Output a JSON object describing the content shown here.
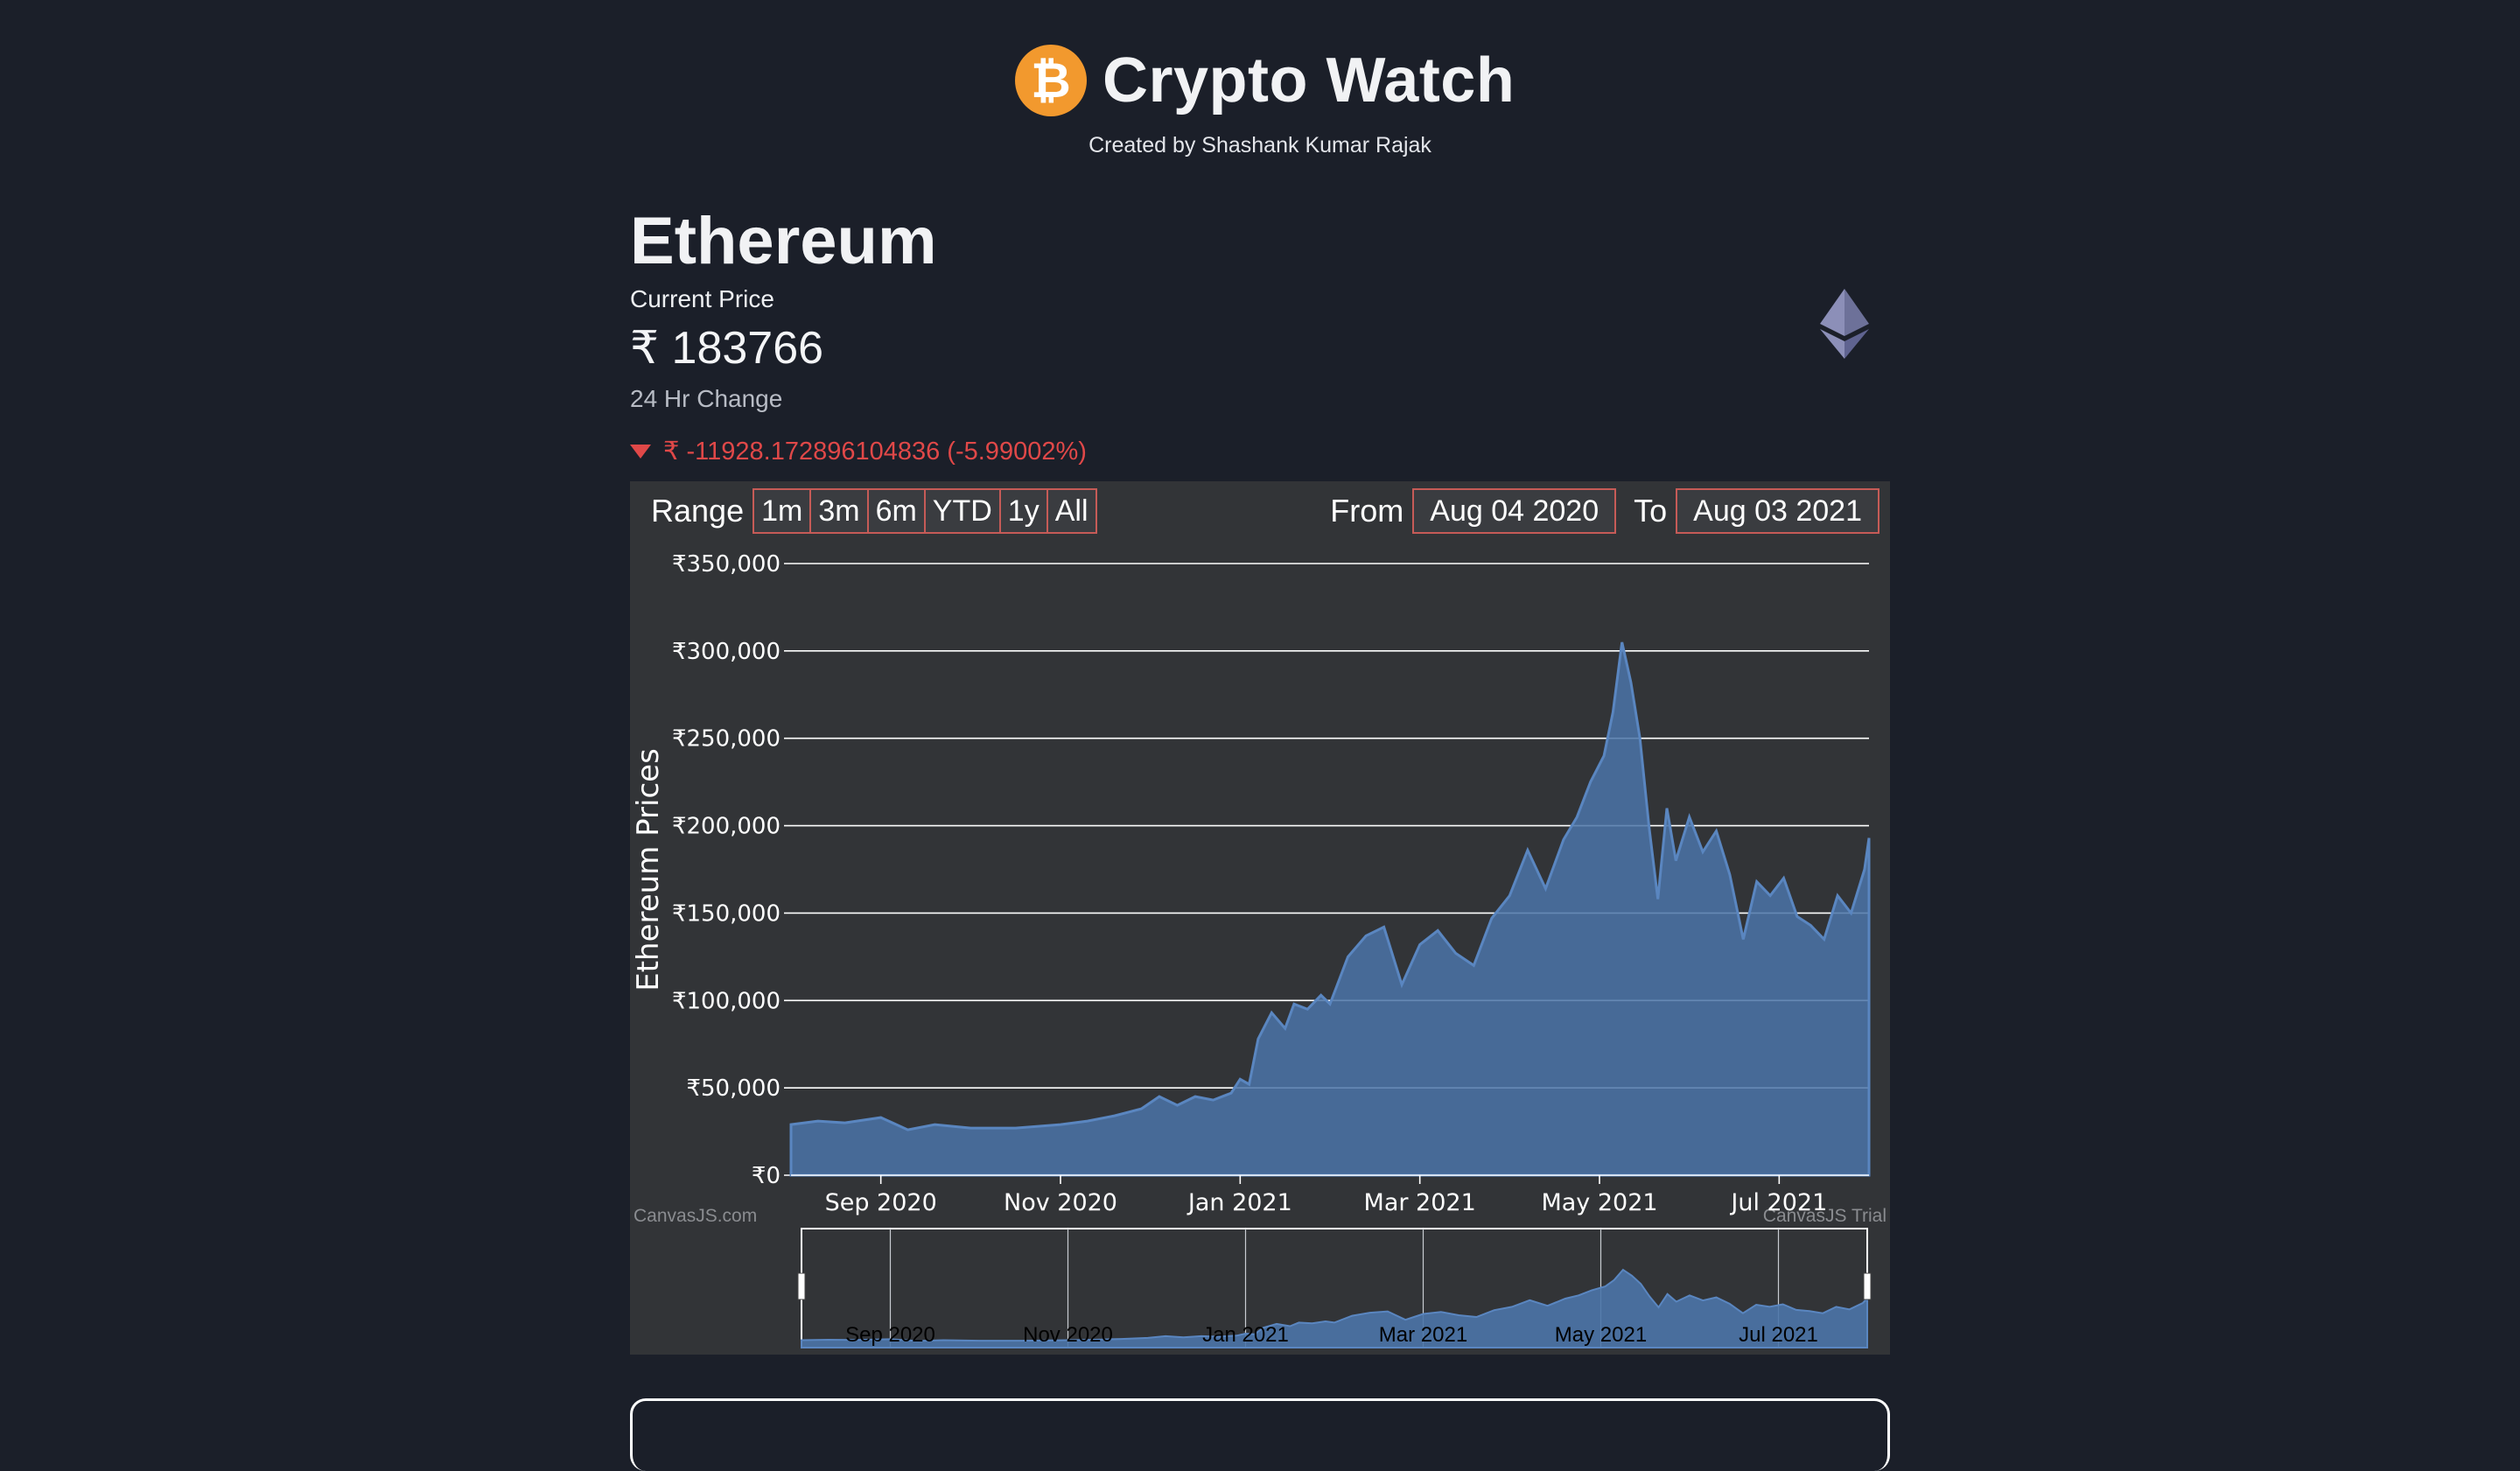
{
  "header": {
    "logo_symbol": "₿",
    "title": "Crypto Watch",
    "subtitle": "Created by Shashank Kumar Rajak"
  },
  "coin": {
    "name": "Ethereum",
    "current_price_label": "Current Price",
    "current_price": "₹ 183766",
    "change_label": "24 Hr Change",
    "change_value": "₹ -11928.172896104836 (-5.99002%)",
    "change_color": "#e04848"
  },
  "range_selector": {
    "label": "Range",
    "buttons": [
      "1m",
      "3m",
      "6m",
      "YTD",
      "1y",
      "All"
    ],
    "from_label": "From",
    "from_value": "Aug 04 2020",
    "to_label": "To",
    "to_value": "Aug 03 2021"
  },
  "chart_data": {
    "type": "area",
    "ylabel": "Ethereum Prices",
    "y_ticks": [
      "₹0",
      "₹50,000",
      "₹100,000",
      "₹150,000",
      "₹200,000",
      "₹250,000",
      "₹300,000",
      "₹350,000"
    ],
    "ylim": [
      0,
      350000
    ],
    "x_tick_labels": [
      "Sep 2020",
      "Nov 2020",
      "Jan 2021",
      "Mar 2021",
      "May 2021",
      "Jul 2021"
    ],
    "x_ticks_month_index": [
      1,
      3,
      5,
      7,
      9,
      11
    ],
    "x_range_months": [
      0,
      12
    ],
    "series": [
      {
        "name": "Ethereum",
        "color": "#4b74a8",
        "x_month": [
          0,
          0.3,
          0.6,
          1.0,
          1.3,
          1.6,
          2.0,
          2.5,
          3.0,
          3.3,
          3.6,
          3.9,
          4.1,
          4.3,
          4.5,
          4.7,
          4.9,
          5.0,
          5.1,
          5.2,
          5.35,
          5.5,
          5.6,
          5.75,
          5.9,
          6.0,
          6.2,
          6.4,
          6.6,
          6.8,
          7.0,
          7.2,
          7.4,
          7.6,
          7.8,
          8.0,
          8.2,
          8.4,
          8.6,
          8.75,
          8.9,
          9.05,
          9.15,
          9.25,
          9.35,
          9.45,
          9.55,
          9.65,
          9.75,
          9.85,
          10.0,
          10.15,
          10.3,
          10.45,
          10.6,
          10.75,
          10.9,
          11.05,
          11.2,
          11.35,
          11.5,
          11.65,
          11.8,
          11.95,
          12.0
        ],
        "values": [
          29000,
          31000,
          30000,
          33000,
          26000,
          29000,
          27000,
          27000,
          29000,
          31000,
          34000,
          38000,
          45000,
          40000,
          45000,
          43000,
          47000,
          55000,
          52000,
          78000,
          93000,
          84000,
          98000,
          95000,
          103000,
          98000,
          125000,
          137000,
          142000,
          109000,
          132000,
          140000,
          127000,
          120000,
          147000,
          160000,
          186000,
          164000,
          192000,
          205000,
          225000,
          240000,
          265000,
          305000,
          282000,
          250000,
          200000,
          158000,
          210000,
          180000,
          205000,
          185000,
          197000,
          172000,
          135000,
          168000,
          160000,
          170000,
          148000,
          143000,
          135000,
          160000,
          150000,
          175000,
          193000
        ]
      }
    ],
    "watermarks": [
      "CanvasJS.com",
      "CanvasJS Trial"
    ]
  }
}
